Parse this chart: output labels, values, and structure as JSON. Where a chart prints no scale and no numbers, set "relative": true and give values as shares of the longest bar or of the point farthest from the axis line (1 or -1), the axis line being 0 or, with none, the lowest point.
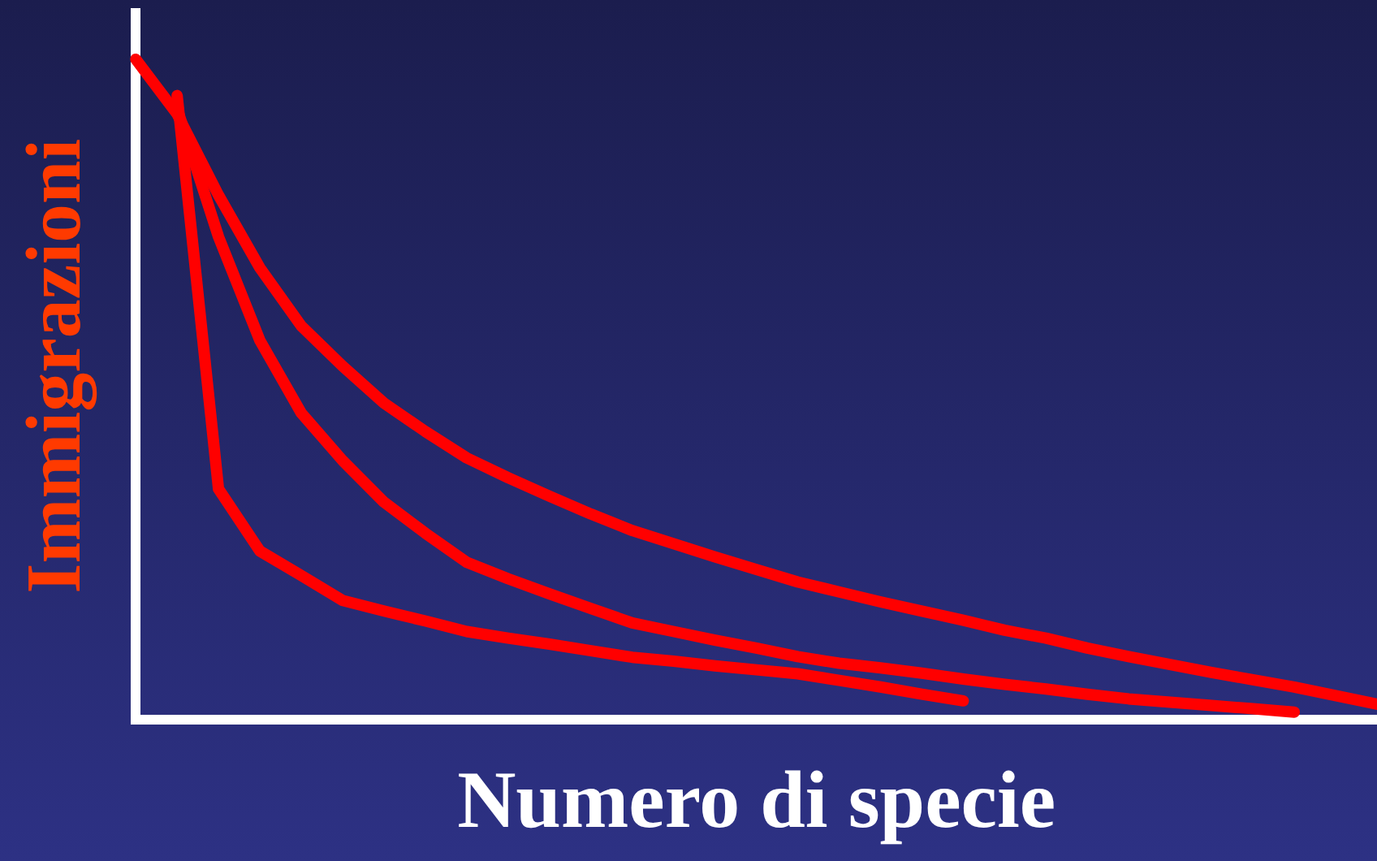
{
  "chart_data": {
    "type": "line",
    "relative": true,
    "xlabel": "Numero di specie",
    "ylabel": "Immigrazioni",
    "legend": false,
    "marker": "none",
    "line_style": "solid",
    "categories": [
      null,
      null,
      null,
      null,
      null,
      null,
      null,
      null,
      null,
      null,
      null,
      null,
      null,
      null,
      null,
      null,
      null,
      null,
      null,
      null,
      null,
      null,
      null,
      null,
      null,
      null,
      null,
      null,
      null,
      null,
      null
    ],
    "series": [
      {
        "color": "#ff0000",
        "values": [
          1,
          0.917,
          0.794,
          0.684,
          0.596,
          0.535,
          0.479,
          0.436,
          0.396,
          0.366,
          0.338,
          0.311,
          0.286,
          0.266,
          0.246,
          0.227,
          0.208,
          0.193,
          0.178,
          0.164,
          0.15,
          0.135,
          0.123,
          0.108,
          0.095,
          0.083,
          0.071,
          0.06,
          0.049,
          0.036,
          0.023
        ]
      },
      {
        "color": "#ff0000",
        "values": [
          null,
          0.925,
          0.731,
          0.574,
          0.464,
          0.392,
          0.329,
          0.282,
          0.238,
          0.213,
          0.19,
          0.168,
          0.146,
          0.133,
          0.12,
          0.108,
          0.095,
          0.085,
          0.078,
          0.07,
          0.061,
          0.053,
          0.046,
          0.038,
          0.031,
          0.026,
          0.021,
          0.016,
          0.011,
          null,
          null
        ]
      },
      {
        "color": "#ff0000",
        "values": [
          null,
          0.945,
          0.349,
          0.255,
          0.218,
          0.18,
          0.164,
          0.149,
          0.133,
          0.123,
          0.114,
          0.104,
          0.094,
          0.088,
          0.081,
          0.075,
          0.069,
          0.059,
          0.049,
          0.038,
          0.028,
          null,
          null,
          null,
          null,
          null,
          null,
          null,
          null,
          null,
          null
        ]
      }
    ]
  }
}
